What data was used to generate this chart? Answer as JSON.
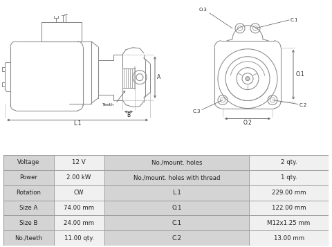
{
  "table_rows": [
    [
      "Voltage",
      "12 V",
      "No./mount. holes",
      "2 qty."
    ],
    [
      "Power",
      "2.00 kW",
      "No./mount. holes with thread",
      "1 qty."
    ],
    [
      "Rotation",
      "CW",
      "L.1",
      "229.00 mm"
    ],
    [
      "Size A",
      "74.00 mm",
      "O.1",
      "122.00 mm"
    ],
    [
      "Size B",
      "24.00 mm",
      "C.1",
      "M12x1.25 mm"
    ],
    [
      "No./teeth",
      "11.00 qty.",
      "C.2",
      "13.00 mm"
    ]
  ],
  "bg_color": "#ffffff",
  "table_header_bg": "#d4d4d4",
  "table_row_bg_light": "#f0f0f0",
  "table_border": "#999999",
  "text_color": "#222222",
  "line_color": "#888888",
  "dim_color": "#555555"
}
